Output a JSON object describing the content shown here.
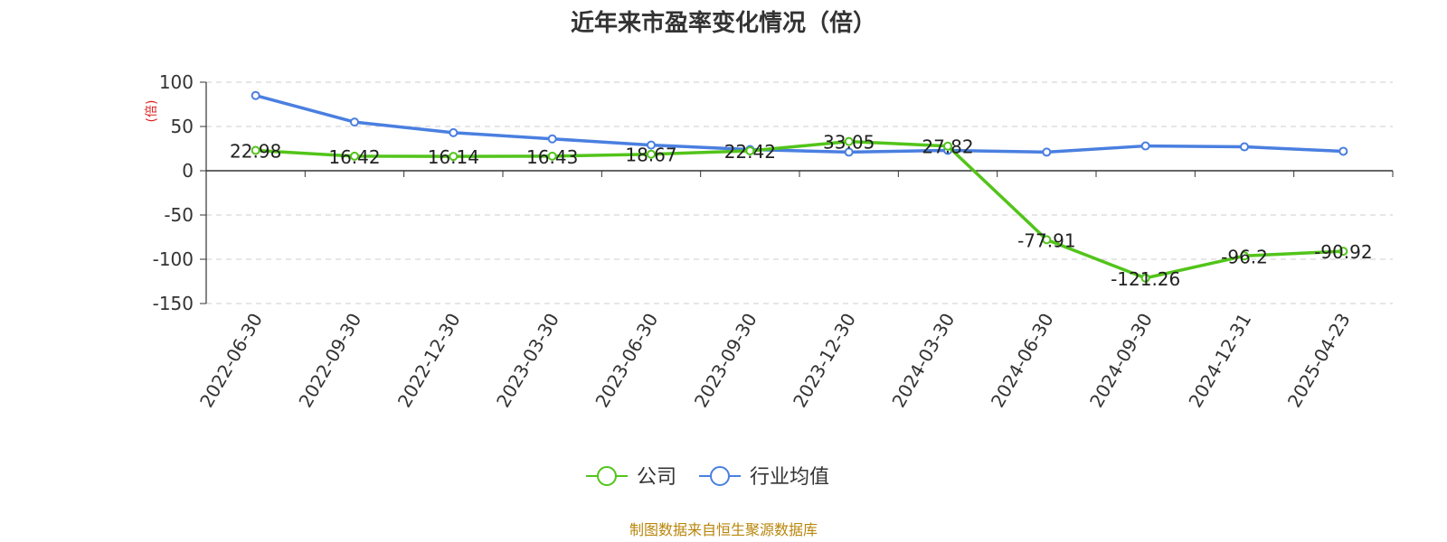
{
  "chart_data": {
    "type": "line",
    "title": "近年来市盈率变化情况（倍）",
    "ylabel": "(倍)",
    "ylim": [
      -150,
      100
    ],
    "yticks": [
      100,
      50,
      0,
      -50,
      -100,
      -150
    ],
    "grid": true,
    "legend_position": "bottom-center",
    "categories": [
      "2022-06-30",
      "2022-09-30",
      "2022-12-30",
      "2023-03-30",
      "2023-06-30",
      "2023-09-30",
      "2023-12-30",
      "2024-03-30",
      "2024-06-30",
      "2024-09-30",
      "2024-12-31",
      "2025-04-23"
    ],
    "series": [
      {
        "name": "公司",
        "color": "#52c41a",
        "values": [
          22.98,
          16.42,
          16.14,
          16.43,
          18.67,
          22.42,
          33.05,
          27.82,
          -77.91,
          -121.26,
          -96.2,
          -90.92
        ],
        "labels": [
          "22.98",
          "16.42",
          "16.14",
          "16.43",
          "18.67",
          "22.42",
          "33.05",
          "27.82",
          "-77.91",
          "-121.26",
          "-96.2",
          "-90.92"
        ]
      },
      {
        "name": "行业均值",
        "color": "#4a7fe0",
        "values": [
          85,
          55,
          43,
          36,
          29,
          24,
          21,
          23,
          21,
          28,
          27,
          22
        ]
      }
    ]
  },
  "footer": {
    "source": "制图数据来自恒生聚源数据库",
    "color": "#b8860b"
  },
  "ylabel_color": "#e02020"
}
